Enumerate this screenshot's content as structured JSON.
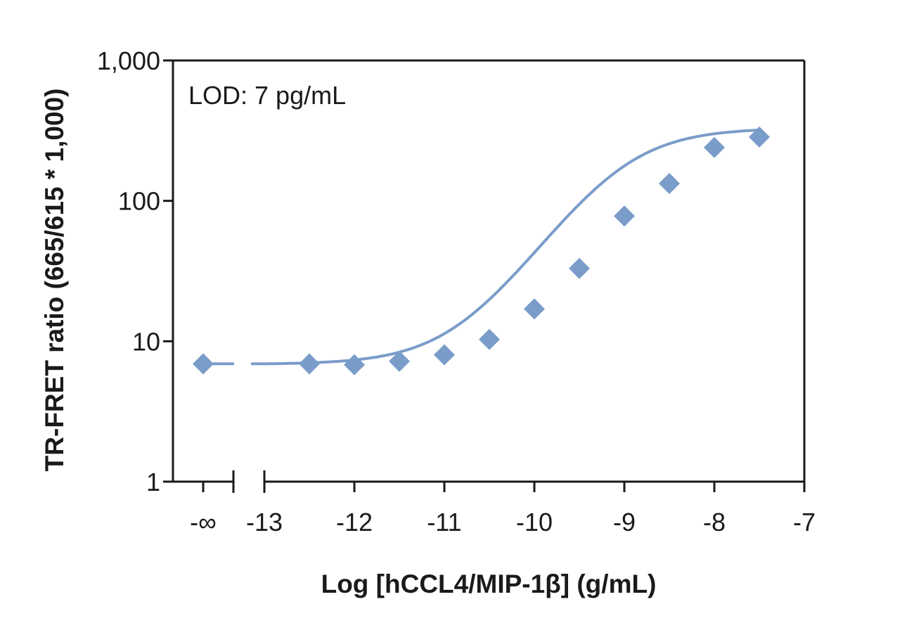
{
  "chart_data": {
    "type": "scatter",
    "xlabel": "Log [hCCL4/MIP-1β] (g/mL)",
    "ylabel": "TR-FRET ratio (665/615 * 1,000)",
    "annotation": "LOD: 7 pg/mL",
    "x_scale": "log10 concentration (broken axis with -∞ zero point)",
    "y_scale": "log",
    "xlim": [
      -13,
      -7
    ],
    "ylim": [
      1,
      1000
    ],
    "grid": false,
    "legend": "none",
    "x_ticks": [
      {
        "value": "-inf",
        "label": "-∞"
      },
      {
        "value": -13,
        "label": "-13"
      },
      {
        "value": -12,
        "label": "-12"
      },
      {
        "value": -11,
        "label": "-11"
      },
      {
        "value": -10,
        "label": "-10"
      },
      {
        "value": -9,
        "label": "-9"
      },
      {
        "value": -8,
        "label": "-8"
      },
      {
        "value": -7,
        "label": "-7"
      }
    ],
    "y_ticks": [
      {
        "value": 1,
        "label": "1"
      },
      {
        "value": 10,
        "label": "10"
      },
      {
        "value": 100,
        "label": "100"
      },
      {
        "value": 1000,
        "label": "1,000"
      }
    ],
    "series": [
      {
        "color": "#7a9cc9",
        "marker": "diamond",
        "points": [
          {
            "x": "-inf",
            "y": 6.9
          },
          {
            "x": -12.5,
            "y": 6.9
          },
          {
            "x": -12.0,
            "y": 6.8
          },
          {
            "x": -11.5,
            "y": 7.2
          },
          {
            "x": -11.0,
            "y": 8.0
          },
          {
            "x": -10.5,
            "y": 10.3
          },
          {
            "x": -10.0,
            "y": 17.0
          },
          {
            "x": -9.5,
            "y": 33.0
          },
          {
            "x": -9.0,
            "y": 78.0
          },
          {
            "x": -8.5,
            "y": 133.0
          },
          {
            "x": -8.0,
            "y": 240.0
          },
          {
            "x": -7.5,
            "y": 285.0
          }
        ]
      }
    ]
  }
}
